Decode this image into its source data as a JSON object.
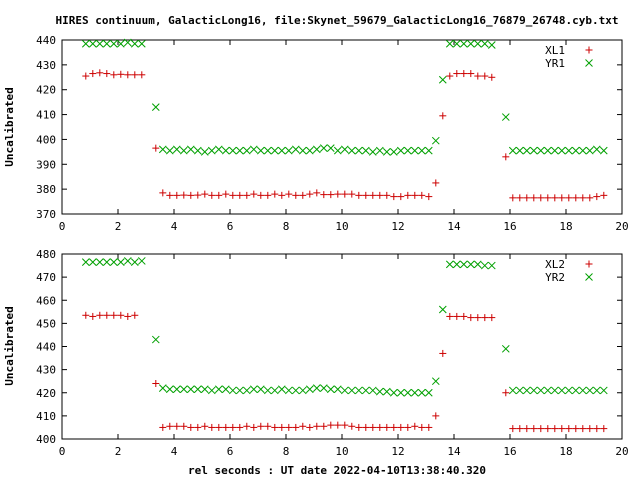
{
  "title": "HIRES continuum, GalacticLong16, file:Skynet_59679_GalacticLong16_76879_26748.cyb.txt",
  "xlabel": "rel seconds : UT date 2022-04-10T13:38:40.320",
  "colors": {
    "series_1": "#cc0000",
    "series_2": "#00a000",
    "frame": "#000000"
  },
  "chart_data": [
    {
      "type": "scatter",
      "title": "HIRES continuum, GalacticLong16, file:Skynet_59679_GalacticLong16_76879_26748.cyb.txt",
      "xlabel": "",
      "ylabel": "Uncalibrated",
      "xlim": [
        0,
        20
      ],
      "ylim": [
        370,
        440
      ],
      "xticks": [
        0,
        2,
        4,
        6,
        8,
        10,
        12,
        14,
        16,
        18,
        20
      ],
      "yticks": [
        370,
        380,
        390,
        400,
        410,
        420,
        430,
        440
      ],
      "grid": false,
      "legend": "top-right",
      "series": [
        {
          "name": "XL1",
          "marker": "plus",
          "color": "#cc0000",
          "x": [
            0.85,
            1.1,
            1.35,
            1.6,
            1.85,
            2.1,
            2.35,
            2.6,
            2.85,
            3.1,
            3.35,
            3.6,
            3.85,
            4.1,
            4.35,
            4.6,
            4.85,
            5.1,
            5.35,
            5.6,
            5.85,
            6.1,
            6.35,
            6.6,
            6.85,
            7.1,
            7.35,
            7.6,
            7.85,
            8.1,
            8.35,
            8.6,
            8.85,
            9.1,
            9.35,
            9.6,
            9.85,
            10.1,
            10.35,
            10.6,
            10.85,
            11.1,
            11.35,
            11.6,
            11.85,
            12.1,
            12.35,
            12.6,
            12.85,
            13.1,
            13.35,
            13.6,
            13.85,
            14.1,
            14.35,
            14.6,
            14.85,
            15.1,
            15.35,
            15.6,
            15.85,
            16.1,
            16.35,
            16.6,
            16.85,
            17.1,
            17.35,
            17.6,
            17.85,
            18.1,
            18.35,
            18.6,
            18.85,
            19.1,
            19.35
          ],
          "y": [
            425.5,
            426.5,
            426.8,
            426.5,
            426.0,
            426.2,
            426.0,
            426.0,
            426.0,
            null,
            396.5,
            378.5,
            377.5,
            377.5,
            377.6,
            377.5,
            377.6,
            378.0,
            377.5,
            377.5,
            378.0,
            377.5,
            377.5,
            377.5,
            378.0,
            377.5,
            377.5,
            378.0,
            377.5,
            378.0,
            377.5,
            377.5,
            378.0,
            378.5,
            377.8,
            377.8,
            378.0,
            378.0,
            378.0,
            377.5,
            377.5,
            377.5,
            377.5,
            377.5,
            377.0,
            377.0,
            377.5,
            377.5,
            377.5,
            377.0,
            382.5,
            409.5,
            425.5,
            426.5,
            426.5,
            426.5,
            425.5,
            425.5,
            425.0,
            null,
            393.0,
            376.5,
            376.5,
            376.5,
            376.5,
            376.5,
            376.5,
            376.5,
            376.5,
            376.5,
            376.5,
            376.5,
            376.5,
            377.0,
            377.5
          ]
        },
        {
          "name": "YR1",
          "marker": "cross",
          "color": "#00a000",
          "x": [
            0.85,
            1.1,
            1.35,
            1.6,
            1.85,
            2.1,
            2.35,
            2.6,
            2.85,
            3.1,
            3.35,
            3.6,
            3.85,
            4.1,
            4.35,
            4.6,
            4.85,
            5.1,
            5.35,
            5.6,
            5.85,
            6.1,
            6.35,
            6.6,
            6.85,
            7.1,
            7.35,
            7.6,
            7.85,
            8.1,
            8.35,
            8.6,
            8.85,
            9.1,
            9.35,
            9.6,
            9.85,
            10.1,
            10.35,
            10.6,
            10.85,
            11.1,
            11.35,
            11.6,
            11.85,
            12.1,
            12.35,
            12.6,
            12.85,
            13.1,
            13.35,
            13.6,
            13.85,
            14.1,
            14.35,
            14.6,
            14.85,
            15.1,
            15.35,
            15.6,
            15.85,
            16.1,
            16.35,
            16.6,
            16.85,
            17.1,
            17.35,
            17.6,
            17.85,
            18.1,
            18.35,
            18.6,
            18.85,
            19.1,
            19.35
          ],
          "y": [
            438.5,
            438.5,
            438.5,
            438.5,
            438.5,
            438.5,
            439.0,
            438.5,
            438.5,
            null,
            413.0,
            396.0,
            395.5,
            396.0,
            395.5,
            396.0,
            395.5,
            395.0,
            395.5,
            396.0,
            395.5,
            395.5,
            395.5,
            395.5,
            396.0,
            395.5,
            395.5,
            395.5,
            395.5,
            395.5,
            396.0,
            395.5,
            395.5,
            396.0,
            396.5,
            396.5,
            395.5,
            396.0,
            395.5,
            395.5,
            395.5,
            395.0,
            395.5,
            395.0,
            395.0,
            395.5,
            395.5,
            395.5,
            395.5,
            395.5,
            399.5,
            424.0,
            438.5,
            438.5,
            438.5,
            438.5,
            438.5,
            438.5,
            438.0,
            null,
            409.0,
            395.5,
            395.5,
            395.5,
            395.5,
            395.5,
            395.5,
            395.5,
            395.5,
            395.5,
            395.5,
            395.5,
            395.5,
            396.0,
            395.5
          ]
        }
      ]
    },
    {
      "type": "scatter",
      "title": "",
      "xlabel": "rel seconds : UT date 2022-04-10T13:38:40.320",
      "ylabel": "Uncalibrated",
      "xlim": [
        0,
        20
      ],
      "ylim": [
        400,
        480
      ],
      "xticks": [
        0,
        2,
        4,
        6,
        8,
        10,
        12,
        14,
        16,
        18,
        20
      ],
      "yticks": [
        400,
        410,
        420,
        430,
        440,
        450,
        460,
        470,
        480
      ],
      "grid": false,
      "legend": "top-right",
      "series": [
        {
          "name": "XL2",
          "marker": "plus",
          "color": "#cc0000",
          "x": [
            0.85,
            1.1,
            1.35,
            1.6,
            1.85,
            2.1,
            2.35,
            2.6,
            2.85,
            3.1,
            3.35,
            3.6,
            3.85,
            4.1,
            4.35,
            4.6,
            4.85,
            5.1,
            5.35,
            5.6,
            5.85,
            6.1,
            6.35,
            6.6,
            6.85,
            7.1,
            7.35,
            7.6,
            7.85,
            8.1,
            8.35,
            8.6,
            8.85,
            9.1,
            9.35,
            9.6,
            9.85,
            10.1,
            10.35,
            10.6,
            10.85,
            11.1,
            11.35,
            11.6,
            11.85,
            12.1,
            12.35,
            12.6,
            12.85,
            13.1,
            13.35,
            13.6,
            13.85,
            14.1,
            14.35,
            14.6,
            14.85,
            15.1,
            15.35,
            15.6,
            15.85,
            16.1,
            16.35,
            16.6,
            16.85,
            17.1,
            17.35,
            17.6,
            17.85,
            18.1,
            18.35,
            18.6,
            18.85,
            19.1,
            19.35
          ],
          "y": [
            453.5,
            453.0,
            453.5,
            453.5,
            453.5,
            453.5,
            453.0,
            453.5,
            null,
            null,
            424.0,
            405.0,
            405.5,
            405.5,
            405.5,
            405.0,
            405.0,
            405.5,
            405.0,
            405.0,
            405.0,
            405.0,
            405.0,
            405.5,
            405.0,
            405.5,
            405.5,
            405.0,
            405.0,
            405.0,
            405.0,
            405.5,
            405.0,
            405.5,
            405.5,
            406.0,
            406.0,
            406.0,
            405.5,
            405.0,
            405.0,
            405.0,
            405.0,
            405.0,
            405.0,
            405.0,
            405.0,
            405.5,
            405.0,
            405.0,
            410.0,
            437.0,
            453.0,
            453.0,
            453.0,
            452.5,
            452.5,
            452.5,
            452.5,
            null,
            420.0,
            404.5,
            404.5,
            404.5,
            404.5,
            404.5,
            404.5,
            404.5,
            404.5,
            404.5,
            404.5,
            404.5,
            404.5,
            404.5,
            404.5
          ]
        },
        {
          "name": "YR2",
          "marker": "cross",
          "color": "#00a000",
          "x": [
            0.85,
            1.1,
            1.35,
            1.6,
            1.85,
            2.1,
            2.35,
            2.6,
            2.85,
            3.1,
            3.35,
            3.6,
            3.85,
            4.1,
            4.35,
            4.6,
            4.85,
            5.1,
            5.35,
            5.6,
            5.85,
            6.1,
            6.35,
            6.6,
            6.85,
            7.1,
            7.35,
            7.6,
            7.85,
            8.1,
            8.35,
            8.6,
            8.85,
            9.1,
            9.35,
            9.6,
            9.85,
            10.1,
            10.35,
            10.6,
            10.85,
            11.1,
            11.35,
            11.6,
            11.85,
            12.1,
            12.35,
            12.6,
            12.85,
            13.1,
            13.35,
            13.6,
            13.85,
            14.1,
            14.35,
            14.6,
            14.85,
            15.1,
            15.35,
            15.6,
            15.85,
            16.1,
            16.35,
            16.6,
            16.85,
            17.1,
            17.35,
            17.6,
            17.85,
            18.1,
            18.35,
            18.6,
            18.85,
            19.1,
            19.35
          ],
          "y": [
            476.5,
            476.5,
            476.5,
            476.5,
            476.5,
            476.5,
            477.0,
            476.5,
            477.0,
            null,
            443.0,
            422.0,
            421.5,
            421.5,
            421.5,
            421.5,
            421.5,
            421.5,
            421.0,
            421.5,
            421.5,
            421.0,
            421.0,
            421.0,
            421.5,
            421.5,
            421.0,
            421.0,
            421.5,
            421.0,
            421.0,
            421.0,
            421.5,
            422.0,
            422.0,
            421.5,
            421.5,
            421.0,
            421.0,
            421.0,
            421.0,
            421.0,
            420.5,
            420.5,
            420.0,
            420.0,
            420.0,
            420.0,
            420.0,
            420.0,
            425.0,
            456.0,
            475.5,
            475.5,
            475.5,
            475.5,
            475.5,
            475.0,
            475.0,
            null,
            439.0,
            421.0,
            421.0,
            421.0,
            421.0,
            421.0,
            421.0,
            421.0,
            421.0,
            421.0,
            421.0,
            421.0,
            421.0,
            421.0,
            421.0
          ]
        }
      ]
    }
  ]
}
